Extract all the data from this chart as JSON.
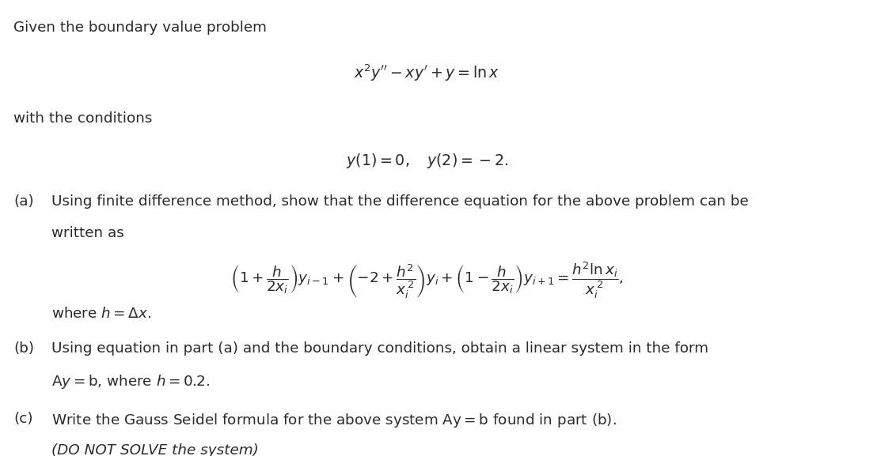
{
  "bg_color": "#ffffff",
  "text_color": "#2a2a2a",
  "fontsize_main": 13.2,
  "line1": "Given the boundary value problem",
  "ode_eq": "$x^2y'' - xy' + y = \\ln x$",
  "cond_label": "with the conditions",
  "cond_eq": "$y(1) = 0, \\quad y(2) = -2.$",
  "a_label": "(a)",
  "a_text1": "Using finite difference method, show that the difference equation for the above problem can be",
  "a_text2": "written as",
  "diff_eq": "$\\left(1 + \\dfrac{h}{2x_i}\\right)y_{i-1} + \\left(-2 + \\dfrac{h^2}{x_i^{\\,2}}\\right)y_i + \\left(1 - \\dfrac{h}{2x_i}\\right)y_{i+1} = \\dfrac{h^2 \\ln x_i}{x_i^{\\,2}},$",
  "where_h": "where $h = \\Delta x$.",
  "b_label": "(b)",
  "b_text1": "Using equation in part (a) and the boundary conditions, obtain a linear system in the form",
  "b_text2": "$\\mathrm{A}y = \\mathrm{b}$, where $h = 0.2$.",
  "c_label": "(c)",
  "c_text1": "Write the Gauss Seidel formula for the above system $\\mathrm{Ay} = \\mathrm{b}$ found in part (b).",
  "c_text2": "(DO NOT SOLVE the system)"
}
